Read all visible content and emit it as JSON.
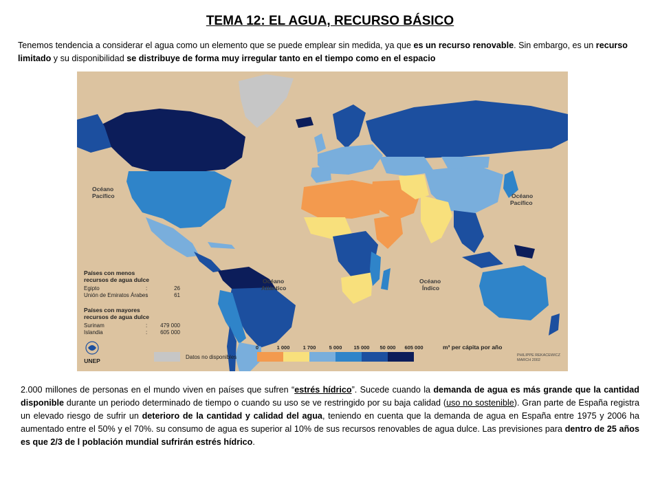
{
  "title": "TEMA 12: EL AGUA, RECURSO BÁSICO",
  "intro": {
    "t1": "Tenemos tendencia a considerar el agua como un elemento que se puede emplear sin medida, ya que ",
    "b1": "es un recurso renovable",
    "t2": ". Sin embargo, es un ",
    "b2": "recurso limitado",
    "t3": " y su disponibilidad ",
    "b3": "se distribuye de forma muy irregular tanto en el tiempo como en el espacio"
  },
  "map": {
    "oceans": {
      "pacific_left": [
        "Océano",
        "Pacífico"
      ],
      "pacific_right": [
        "Océano",
        "Pacífico"
      ],
      "atlantic": [
        "Océano",
        "Atlántico"
      ],
      "indian": [
        "Océano",
        "Índico"
      ]
    },
    "legend": {
      "less_title": [
        "Países con menos",
        "recursos de agua dulce"
      ],
      "less_items": [
        {
          "name": "Egipto",
          "sep": ":",
          "value": "26"
        },
        {
          "name": "Unión de Emiratos Árabes",
          "sep": ":",
          "value": "61"
        }
      ],
      "more_title": [
        "Países con mayores",
        "recursos de agua dulce"
      ],
      "more_items": [
        {
          "name": "Surinam",
          "sep": ":",
          "value": "479 000"
        },
        {
          "name": "Islandia",
          "sep": ":",
          "value": "605 000"
        }
      ]
    },
    "scale": {
      "ticks": [
        "0",
        "1 000",
        "1 700",
        "5 000",
        "15 000",
        "50 000",
        "605 000"
      ],
      "unit": "m³ per cápita por año",
      "colors": [
        "#f39a4e",
        "#f8e07c",
        "#79aedc",
        "#2f84c9",
        "#1c4f9f",
        "#0c1d5a"
      ],
      "no_data_color": "#c6c6c6",
      "no_data_label": "Datos no disponibles"
    },
    "unep_label": "UNEP",
    "credit": [
      "PHILIPPE REKACEWICZ",
      "MARCH 2002"
    ]
  },
  "outro": {
    "t1": "2.000 millones de personas en el mundo viven en países que sufren “",
    "u1": "estrés hídrico",
    "t2": "”. Sucede cuando la ",
    "b1": "demanda de agua es más grande que la cantidad disponible",
    "t3": " durante un periodo determinado de tiempo o cuando su uso se ve restringido por su baja calidad (",
    "u2": "uso no sostenible",
    "t4": "). Gran parte de España registra un elevado riesgo de sufrir un ",
    "b2": "deterioro de la cantidad y calidad del agua",
    "t5": ", teniendo en cuenta que la demanda de agua en España entre 1975 y 2006 ha aumentado entre el 50% y el 70%. su consumo de agua es superior al 10% de sus recursos renovables de agua dulce. Las previsiones para ",
    "b3": "dentro de 25 años es que 2/3 de l población mundial sufrirán estrés hídrico",
    "t6": "."
  }
}
